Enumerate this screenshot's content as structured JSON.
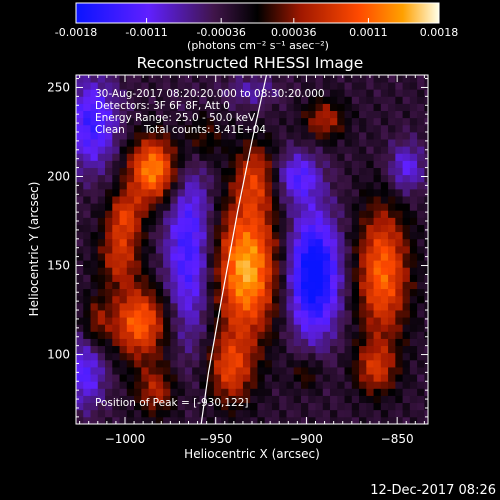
{
  "colorbar": {
    "ticks": [
      "-0.0018",
      "-0.0011",
      "-0.00036",
      "0.00036",
      "0.0011",
      "0.0018"
    ],
    "tick_values": [
      -0.0018,
      -0.0011,
      -0.00036,
      0.00036,
      0.0011,
      0.0018
    ],
    "range": [
      -0.0018,
      0.0018
    ],
    "unit_label": "(photons cm⁻² s⁻¹ asec⁻²)"
  },
  "chart_data": {
    "type": "heatmap",
    "title": "Reconstructed RHESSI Image",
    "xlabel": "Heliocentric X (arcsec)",
    "ylabel": "Heliocentric Y (arcsec)",
    "xlim": [
      -1027,
      -833
    ],
    "ylim": [
      61,
      257
    ],
    "x_ticks": [
      "-1000",
      "-950",
      "-900",
      "-850"
    ],
    "x_tick_values": [
      -1000,
      -950,
      -900,
      -850
    ],
    "y_ticks": [
      "100",
      "150",
      "200",
      "250"
    ],
    "y_tick_values": [
      100,
      150,
      200,
      250
    ],
    "limb_curve": [
      [
        -958,
        61
      ],
      [
        -954,
        90
      ],
      [
        -947,
        130
      ],
      [
        -938,
        180
      ],
      [
        -930,
        220
      ],
      [
        -922,
        257
      ]
    ],
    "sources": [
      {
        "x": -984,
        "y": 204,
        "sx": 10,
        "sy": 13,
        "amp": 0.00165
      },
      {
        "x": -1000,
        "y": 178,
        "sx": 7,
        "sy": 10,
        "amp": 0.00095
      },
      {
        "x": -1003,
        "y": 155,
        "sx": 8,
        "sy": 12,
        "amp": 0.0009
      },
      {
        "x": -992,
        "y": 118,
        "sx": 11,
        "sy": 14,
        "amp": 0.0014
      },
      {
        "x": -983,
        "y": 80,
        "sx": 8,
        "sy": 10,
        "amp": 0.0008
      },
      {
        "x": -933,
        "y": 148,
        "sx": 12,
        "sy": 26,
        "amp": 0.0018
      },
      {
        "x": -928,
        "y": 200,
        "sx": 8,
        "sy": 14,
        "amp": 0.0009
      },
      {
        "x": -942,
        "y": 92,
        "sx": 9,
        "sy": 14,
        "amp": 0.00105
      },
      {
        "x": -890,
        "y": 232,
        "sx": 8,
        "sy": 8,
        "amp": 0.0008
      },
      {
        "x": -858,
        "y": 146,
        "sx": 10,
        "sy": 26,
        "amp": 0.0014
      },
      {
        "x": -862,
        "y": 92,
        "sx": 8,
        "sy": 10,
        "amp": 0.0009
      },
      {
        "x": -958,
        "y": 222,
        "sx": 8,
        "sy": 10,
        "amp": 0.0006
      },
      {
        "x": -1016,
        "y": 118,
        "sx": 5,
        "sy": 10,
        "amp": 0.0006
      },
      {
        "x": -900,
        "y": 90,
        "sx": 6,
        "sy": 7,
        "amp": 0.0005
      },
      {
        "x": -896,
        "y": 145,
        "sx": 10,
        "sy": 24,
        "amp": -0.00175
      },
      {
        "x": -965,
        "y": 160,
        "sx": 9,
        "sy": 38,
        "amp": -0.0011
      },
      {
        "x": -1018,
        "y": 230,
        "sx": 10,
        "sy": 18,
        "amp": -0.0011
      },
      {
        "x": -905,
        "y": 200,
        "sx": 9,
        "sy": 10,
        "amp": -0.0009
      },
      {
        "x": -1022,
        "y": 90,
        "sx": 8,
        "sy": 14,
        "amp": -0.0009
      },
      {
        "x": -845,
        "y": 205,
        "sx": 7,
        "sy": 10,
        "amp": -0.0008
      },
      {
        "x": -930,
        "y": 248,
        "sx": 10,
        "sy": 6,
        "amp": -0.0005
      }
    ],
    "background": -0.00028
  },
  "annotations": {
    "time_range": "30-Aug-2017 08:20:20.000 to 08:30:20.000",
    "detectors": "Detectors: 3F 6F 8F, Att 0",
    "energy": "Energy Range: 25.0 - 50.0 keV",
    "clean": "Clean",
    "total_counts": "Total counts: 3.41E+04",
    "peak": "Position of Peak = [-930,122]"
  },
  "footer": {
    "timestamp": "12-Dec-2017 08:26"
  }
}
